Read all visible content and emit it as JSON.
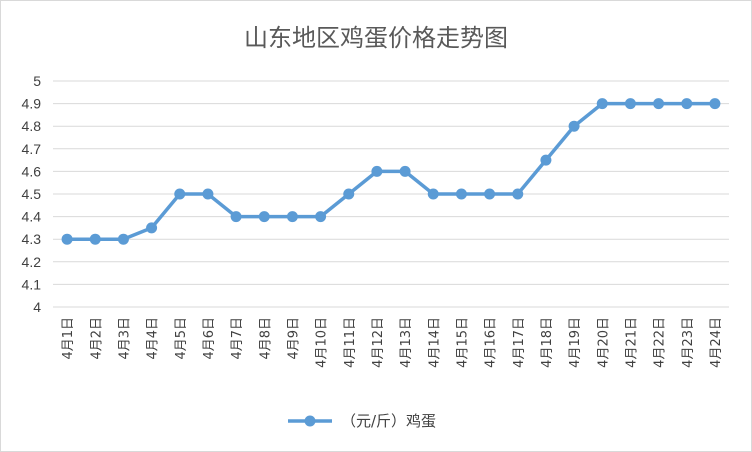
{
  "chart_data": {
    "type": "line",
    "title": "山东地区鸡蛋价格走势图",
    "categories": [
      "4月1日",
      "4月2日",
      "4月3日",
      "4月4日",
      "4月5日",
      "4月6日",
      "4月7日",
      "4月8日",
      "4月9日",
      "4月10日",
      "4月11日",
      "4月12日",
      "4月13日",
      "4月14日",
      "4月15日",
      "4月16日",
      "4月17日",
      "4月18日",
      "4月19日",
      "4月20日",
      "4月21日",
      "4月22日",
      "4月23日",
      "4月24日"
    ],
    "series": [
      {
        "name": "（元/斤）鸡蛋",
        "values": [
          4.3,
          4.3,
          4.3,
          4.35,
          4.5,
          4.5,
          4.4,
          4.4,
          4.4,
          4.4,
          4.5,
          4.6,
          4.6,
          4.5,
          4.5,
          4.5,
          4.5,
          4.65,
          4.8,
          4.9,
          4.9,
          4.9,
          4.9,
          4.9
        ],
        "color": "#5b9bd5"
      }
    ],
    "ylim": [
      4,
      5
    ],
    "yticks": [
      "4",
      "4.1",
      "4.2",
      "4.3",
      "4.4",
      "4.5",
      "4.6",
      "4.7",
      "4.8",
      "4.9",
      "5"
    ],
    "grid": true,
    "legend": "bottom"
  }
}
